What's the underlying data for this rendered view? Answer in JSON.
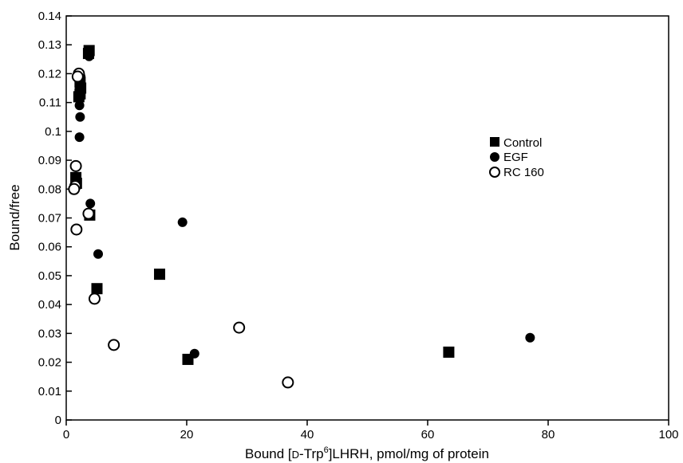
{
  "chart_data": {
    "type": "scatter",
    "title": "",
    "xlabel": {
      "prefix": "Bound [",
      "smallcaps": "D",
      "middle": "-Trp",
      "superscript": "6",
      "suffix": "]LHRH, pmol/mg of protein"
    },
    "ylabel": "Bound/free",
    "xlim": [
      0,
      100
    ],
    "ylim": [
      0,
      0.14
    ],
    "x_ticks": [
      "0",
      "20",
      "40",
      "60",
      "80",
      "100"
    ],
    "y_ticks": [
      "0",
      "0.01",
      "0.02",
      "0.03",
      "0.04",
      "0.05",
      "0.06",
      "0.07",
      "0.08",
      "0.09",
      "0.1",
      "0.11",
      "0.12",
      "0.13",
      "0.14"
    ],
    "grid": false,
    "legend_position": "right-middle",
    "series": [
      {
        "name": "Control",
        "marker": "filled-square",
        "color": "#000000",
        "points": [
          [
            3.8,
            0.128
          ],
          [
            3.7,
            0.127
          ],
          [
            2.3,
            0.117
          ],
          [
            2.4,
            0.115
          ],
          [
            2.3,
            0.113
          ],
          [
            2.1,
            0.112
          ],
          [
            1.6,
            0.084
          ],
          [
            1.7,
            0.082
          ],
          [
            3.9,
            0.071
          ],
          [
            5.1,
            0.0455
          ],
          [
            15.5,
            0.0505
          ],
          [
            20.2,
            0.021
          ],
          [
            63.5,
            0.0235
          ]
        ]
      },
      {
        "name": "EGF",
        "marker": "filled-circle",
        "color": "#000000",
        "points": [
          [
            3.8,
            0.126
          ],
          [
            2.4,
            0.119
          ],
          [
            2.3,
            0.114
          ],
          [
            2.2,
            0.109
          ],
          [
            2.3,
            0.105
          ],
          [
            2.2,
            0.098
          ],
          [
            4.0,
            0.075
          ],
          [
            19.3,
            0.0685
          ],
          [
            5.3,
            0.0575
          ],
          [
            21.3,
            0.023
          ],
          [
            77.0,
            0.0285
          ]
        ]
      },
      {
        "name": "RC 160",
        "marker": "open-circle",
        "color": "#000000",
        "points": [
          [
            2.1,
            0.12
          ],
          [
            1.9,
            0.119
          ],
          [
            1.6,
            0.088
          ],
          [
            1.5,
            0.081
          ],
          [
            1.3,
            0.08
          ],
          [
            3.7,
            0.0715
          ],
          [
            1.7,
            0.066
          ],
          [
            4.7,
            0.042
          ],
          [
            7.9,
            0.026
          ],
          [
            28.7,
            0.032
          ],
          [
            36.8,
            0.013
          ]
        ]
      }
    ]
  }
}
